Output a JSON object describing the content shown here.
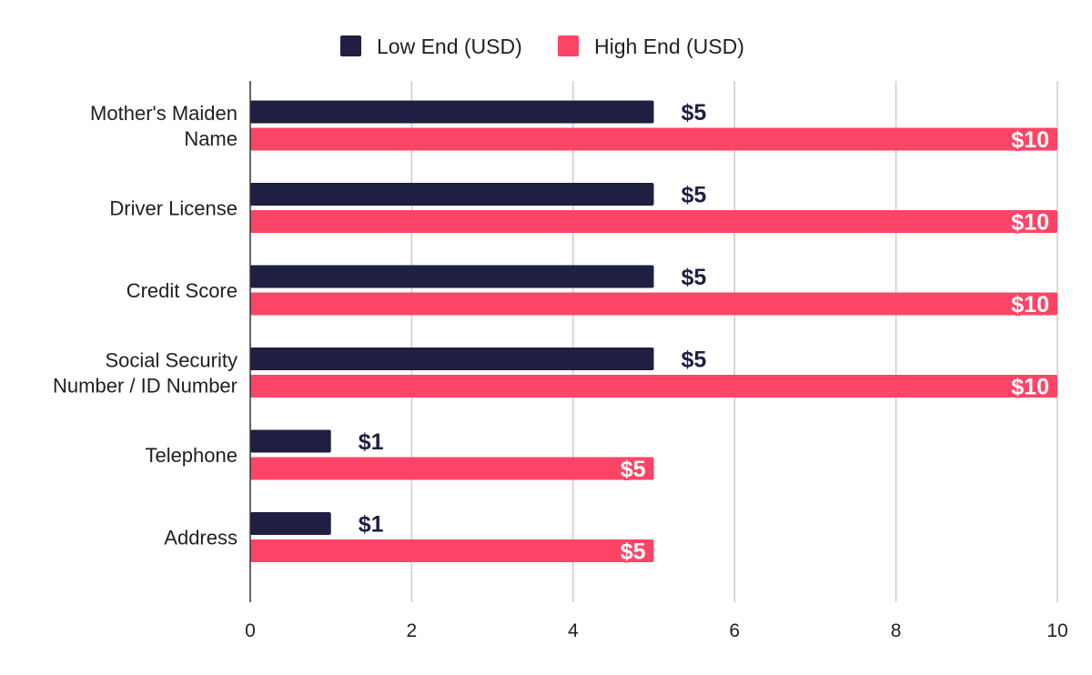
{
  "colors": {
    "low": "#1e1f41",
    "high": "#fc4566",
    "grid": "#cccccc",
    "axis": "#333333"
  },
  "chart_data": {
    "type": "bar",
    "orientation": "horizontal",
    "categories": [
      [
        "Mother's Maiden",
        "Name"
      ],
      [
        "Driver License"
      ],
      [
        "Credit Score"
      ],
      [
        "Social Security",
        "Number / ID Number"
      ],
      [
        "Telephone"
      ],
      [
        "Address"
      ]
    ],
    "series": [
      {
        "name": "Low End (USD)",
        "values": [
          5,
          5,
          5,
          5,
          1,
          1
        ],
        "labels": [
          "$5",
          "$5",
          "$5",
          "$5",
          "$1",
          "$1"
        ]
      },
      {
        "name": "High End (USD)",
        "values": [
          10,
          10,
          10,
          10,
          5,
          5
        ],
        "labels": [
          "$10",
          "$10",
          "$10",
          "$10",
          "$5",
          "$5"
        ]
      }
    ],
    "xlim": [
      0,
      10
    ],
    "xticks": [
      "0",
      "2",
      "4",
      "6",
      "8",
      "10"
    ],
    "xtick_values": [
      0,
      2,
      4,
      6,
      8,
      10
    ],
    "grid": true,
    "legend": "top-center"
  }
}
